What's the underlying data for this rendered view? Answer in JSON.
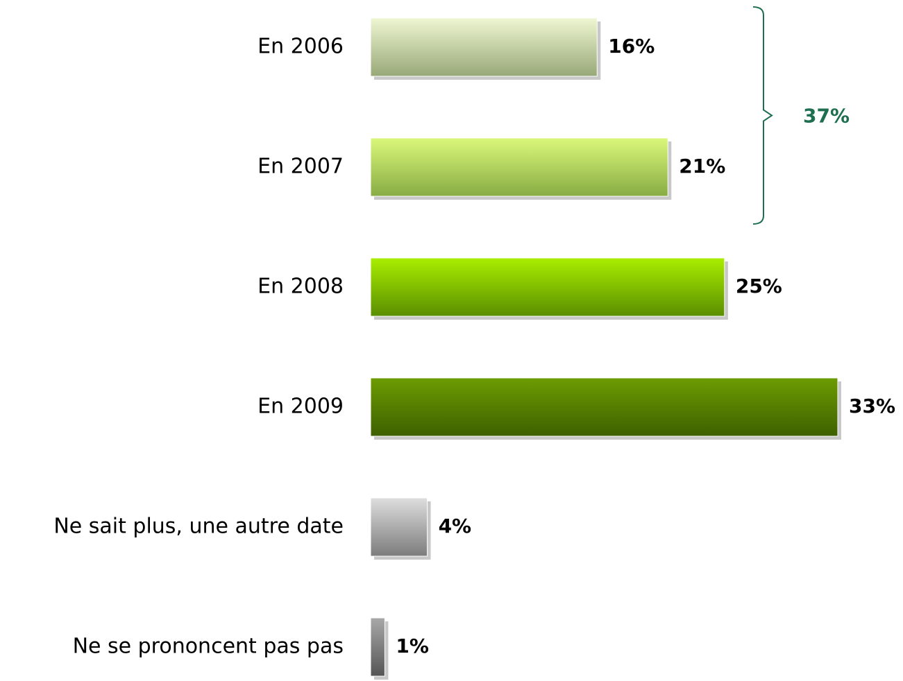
{
  "chart_data": {
    "type": "bar",
    "orientation": "horizontal",
    "categories": [
      "En 2006",
      "En 2007",
      "En 2008",
      "En 2009",
      "Ne sait plus, une autre date",
      "Ne se prononcent pas pas"
    ],
    "values": [
      16,
      21,
      25,
      33,
      4,
      1
    ],
    "value_labels": [
      "16%",
      "21%",
      "25%",
      "33%",
      "4%",
      "1%"
    ],
    "colors": [
      [
        "#eef6d2",
        "#98a878"
      ],
      [
        "#daf87a",
        "#88ac44"
      ],
      [
        "#aaee00",
        "#5a8e00"
      ],
      [
        "#6c9c02",
        "#3e6000"
      ],
      [
        "#dedede",
        "#7c7c7c"
      ],
      [
        "#a8a8a8",
        "#555555"
      ]
    ],
    "annotation": "37%",
    "annotation_color": "#1e6e50"
  }
}
